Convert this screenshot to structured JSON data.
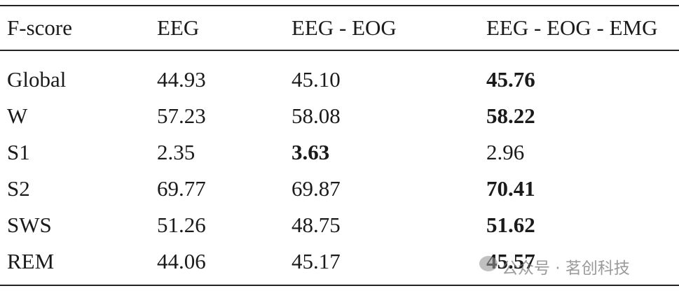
{
  "table": {
    "header": [
      "F-score",
      "EEG",
      "EEG - EOG",
      "EEG - EOG - EMG"
    ],
    "rows": [
      [
        "Global",
        "44.93",
        "45.10",
        {
          "text": "45.76",
          "bold": true
        }
      ],
      [
        "W",
        "57.23",
        "58.08",
        {
          "text": "58.22",
          "bold": true
        }
      ],
      [
        "S1",
        "2.35",
        {
          "text": "3.63",
          "bold": true
        },
        "2.96"
      ],
      [
        "S2",
        "69.77",
        "69.87",
        {
          "text": "70.41",
          "bold": true
        }
      ],
      [
        "SWS",
        "51.26",
        "48.75",
        {
          "text": "51.62",
          "bold": true
        }
      ],
      [
        "REM",
        "44.06",
        "45.17",
        {
          "text": "45.57",
          "bold": true
        }
      ]
    ]
  },
  "watermark": "公众号 · 茗创科技"
}
